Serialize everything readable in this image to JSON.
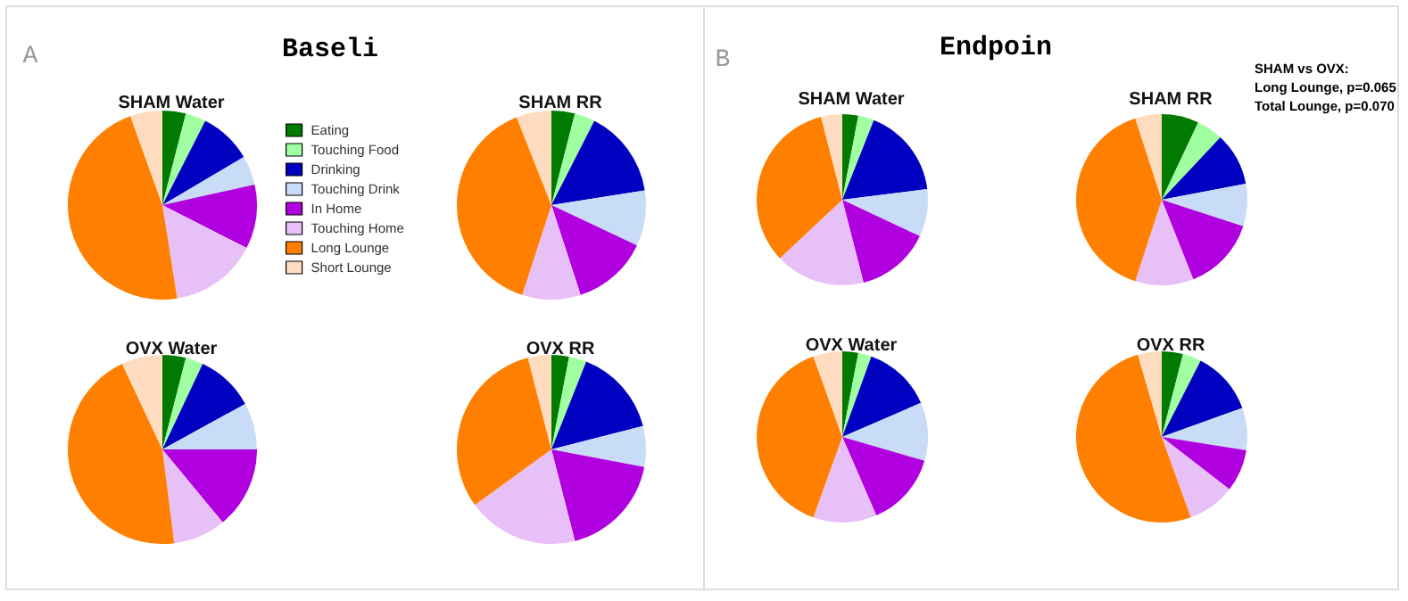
{
  "chart_data": [
    {
      "type": "pie",
      "title": "SHAM Water",
      "annotations": [
        "A",
        "Baseli"
      ],
      "legend": "right",
      "categories": [
        "Eating",
        "Touching Food",
        "Drinking",
        "Touching Drink",
        "In Home",
        "Touching Home",
        "Long Lounge",
        "Short Lounge"
      ],
      "values": [
        4,
        3.5,
        9,
        5,
        11,
        15,
        47,
        5.5
      ],
      "colors": [
        "#007a00",
        "#a0ffa0",
        "#0000c0",
        "#c8dcf8",
        "#b000e0",
        "#e8c0f8",
        "#ff8000",
        "#ffdcc0"
      ]
    },
    {
      "type": "pie",
      "title": "SHAM RR",
      "categories": [
        null,
        null,
        null,
        null,
        null,
        null,
        null,
        null
      ],
      "values": [
        4,
        3.5,
        15,
        9.5,
        13,
        10,
        39,
        6
      ],
      "colors": [
        "#007a00",
        "#a0ffa0",
        "#0000c0",
        "#c8dcf8",
        "#b000e0",
        "#e8c0f8",
        "#ff8000",
        "#ffdcc0"
      ]
    },
    {
      "type": "pie",
      "title": "OVX Water",
      "categories": [
        null,
        null,
        null,
        null,
        null,
        null,
        null,
        null
      ],
      "values": [
        4,
        3,
        10,
        8,
        14,
        9,
        45,
        7
      ],
      "colors": [
        "#007a00",
        "#a0ffa0",
        "#0000c0",
        "#c8dcf8",
        "#b000e0",
        "#e8c0f8",
        "#ff8000",
        "#ffdcc0"
      ]
    },
    {
      "type": "pie",
      "title": "OVX RR",
      "categories": [
        null,
        null,
        null,
        null,
        null,
        null,
        null,
        null
      ],
      "values": [
        3,
        3,
        15,
        7,
        18,
        19,
        31,
        4
      ],
      "colors": [
        "#007a00",
        "#a0ffa0",
        "#0000c0",
        "#c8dcf8",
        "#b000e0",
        "#e8c0f8",
        "#ff8000",
        "#ffdcc0"
      ]
    },
    {
      "type": "pie",
      "title": "SHAM Water",
      "annotations": [
        "B",
        "Endpoin"
      ],
      "categories": [
        null,
        null,
        null,
        null,
        null,
        null,
        null,
        null
      ],
      "values": [
        3,
        3,
        17,
        9,
        14,
        17,
        33,
        4
      ],
      "colors": [
        "#007a00",
        "#a0ffa0",
        "#0000c0",
        "#c8dcf8",
        "#b000e0",
        "#e8c0f8",
        "#ff8000",
        "#ffdcc0"
      ]
    },
    {
      "type": "pie",
      "title": "SHAM RR",
      "annotations": [
        "SHAM vs OVX:\nLong Lounge, p=0.065\nTotal Lounge, p=0.070"
      ],
      "categories": [
        null,
        null,
        null,
        null,
        null,
        null,
        null,
        null
      ],
      "values": [
        7,
        5,
        10,
        8,
        14,
        11,
        40,
        5
      ],
      "colors": [
        "#007a00",
        "#a0ffa0",
        "#0000c0",
        "#c8dcf8",
        "#b000e0",
        "#e8c0f8",
        "#ff8000",
        "#ffdcc0"
      ]
    },
    {
      "type": "pie",
      "title": "OVX Water",
      "categories": [
        null,
        null,
        null,
        null,
        null,
        null,
        null,
        null
      ],
      "values": [
        3,
        2.5,
        13,
        11,
        14,
        12,
        39,
        5.5
      ],
      "colors": [
        "#007a00",
        "#a0ffa0",
        "#0000c0",
        "#c8dcf8",
        "#b000e0",
        "#e8c0f8",
        "#ff8000",
        "#ffdcc0"
      ]
    },
    {
      "type": "pie",
      "title": "OVX RR",
      "categories": [
        null,
        null,
        null,
        null,
        null,
        null,
        null,
        null
      ],
      "values": [
        4,
        3.5,
        12,
        8,
        8,
        9,
        51,
        4.5
      ],
      "colors": [
        "#007a00",
        "#a0ffa0",
        "#0000c0",
        "#c8dcf8",
        "#b000e0",
        "#e8c0f8",
        "#ff8000",
        "#ffdcc0"
      ]
    }
  ]
}
